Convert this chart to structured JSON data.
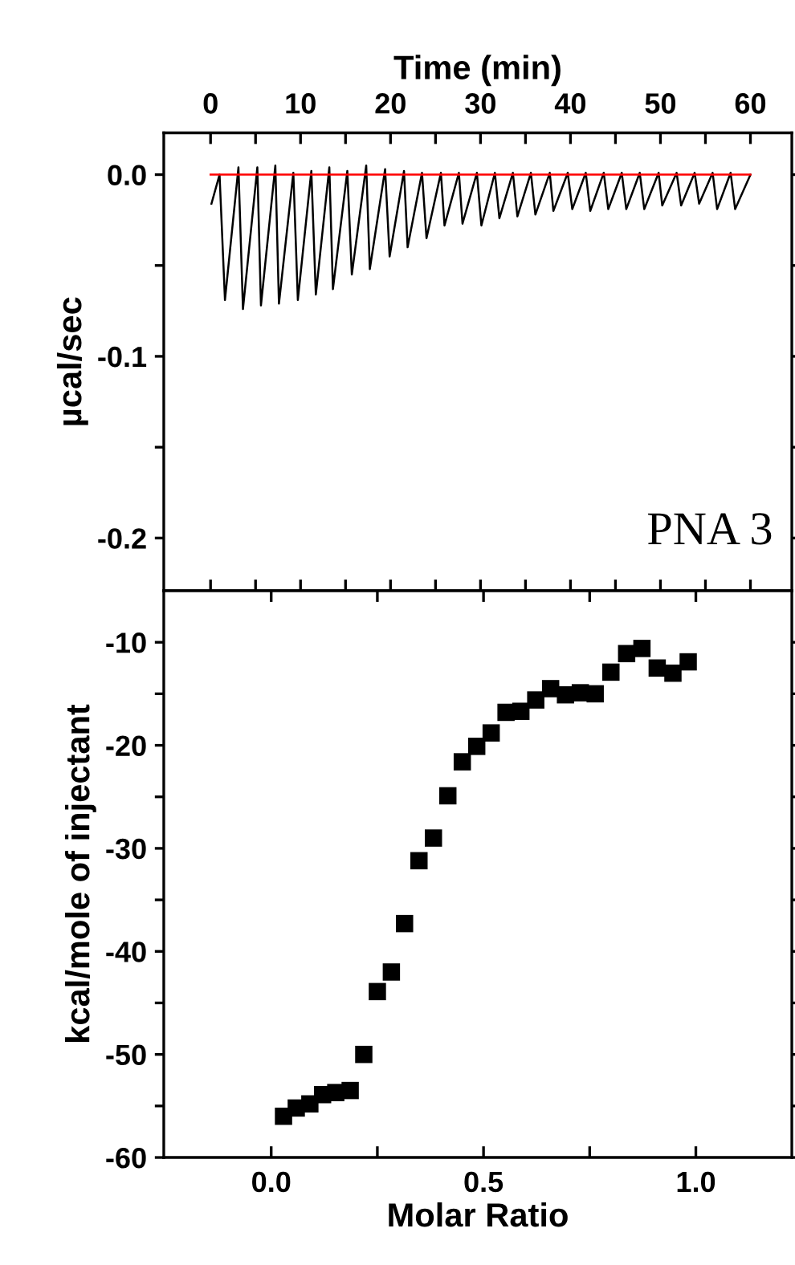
{
  "chart_data": [
    {
      "type": "line",
      "xlabel": "Time (min)",
      "ylabel": "µcal/sec",
      "xlim": [
        -5.2,
        64.6
      ],
      "xticks": [
        0,
        {
          "value": 5,
          "label": null
        },
        10,
        {
          "value": 15,
          "label": null
        },
        20,
        {
          "value": 25,
          "label": null
        },
        30,
        {
          "value": 35,
          "label": null
        },
        40,
        {
          "value": 45,
          "label": null
        },
        50,
        {
          "value": 55,
          "label": null
        },
        60
      ],
      "ylim": [
        -0.229,
        0.023
      ],
      "yticks": [
        {
          "value": 0,
          "label": "0.0"
        },
        {
          "value": -0.05,
          "label": null
        },
        {
          "value": -0.1,
          "label": "-0.1"
        },
        {
          "value": -0.15,
          "label": null
        },
        {
          "value": -0.2,
          "label": "-0.2"
        }
      ],
      "annotations": [
        "PNA 3"
      ],
      "series": [
        {
          "color": "#000000",
          "x": [
            0.1,
            1.0,
            1.6,
            3.1,
            3.6,
            5.2,
            5.6,
            7.2,
            7.6,
            9.2,
            9.7,
            11.2,
            11.7,
            13.2,
            13.6,
            15.2,
            15.7,
            17.3,
            17.7,
            19.4,
            19.9,
            21.5,
            21.9,
            23.5,
            24.0,
            25.6,
            26.0,
            27.6,
            28.0,
            29.6,
            30.1,
            31.6,
            32.1,
            33.6,
            34.1,
            35.6,
            36.1,
            37.7,
            38.1,
            39.7,
            40.2,
            41.7,
            42.2,
            43.7,
            44.2,
            45.7,
            46.2,
            47.7,
            48.2,
            49.8,
            50.2,
            51.8,
            52.3,
            53.8,
            54.3,
            55.8,
            56.3,
            57.8,
            58.3,
            60.0
          ],
          "values": [
            -0.016,
            0.0,
            -0.069,
            0.004,
            -0.074,
            0.004,
            -0.072,
            0.005,
            -0.071,
            0.001,
            -0.069,
            0.002,
            -0.066,
            0.004,
            -0.063,
            0.002,
            -0.055,
            0.005,
            -0.052,
            0.003,
            -0.045,
            0.002,
            -0.04,
            0.001,
            -0.035,
            0.001,
            -0.028,
            0.001,
            -0.027,
            0.001,
            -0.028,
            0.001,
            -0.024,
            0.001,
            -0.023,
            0.001,
            -0.022,
            0.001,
            -0.02,
            0.001,
            -0.019,
            0.001,
            -0.02,
            0.001,
            -0.019,
            0.001,
            -0.019,
            0.001,
            -0.019,
            0.001,
            -0.017,
            0.001,
            -0.017,
            0.001,
            -0.016,
            0.001,
            -0.019,
            0.001,
            -0.019,
            0.0
          ]
        },
        {
          "color": "#ff0000",
          "x": [
            0,
            60
          ],
          "values": [
            0,
            0
          ]
        }
      ]
    },
    {
      "type": "scatter",
      "xlabel": "Molar Ratio",
      "ylabel": "kcal/mole of injectant",
      "marker": "square",
      "xlim": [
        -0.253,
        1.226
      ],
      "xticks": [
        {
          "value": 0,
          "label": "0.0"
        },
        {
          "value": 0.25,
          "label": null
        },
        {
          "value": 0.5,
          "label": "0.5"
        },
        {
          "value": 0.75,
          "label": null
        },
        {
          "value": 1.0,
          "label": "1.0"
        }
      ],
      "ylim": [
        -60,
        -5
      ],
      "yticks": [
        {
          "value": -60,
          "label": "-60"
        },
        {
          "value": -55,
          "label": null
        },
        {
          "value": -50,
          "label": "-50"
        },
        {
          "value": -45,
          "label": null
        },
        {
          "value": -40,
          "label": "-40"
        },
        {
          "value": -35,
          "label": null
        },
        {
          "value": -30,
          "label": "-30"
        },
        {
          "value": -25,
          "label": null
        },
        {
          "value": -20,
          "label": "-20"
        },
        {
          "value": -15,
          "label": null
        },
        {
          "value": -10,
          "label": "-10"
        }
      ],
      "series": [
        {
          "color": "#000000",
          "x": [
            0.029,
            0.059,
            0.091,
            0.121,
            0.152,
            0.186,
            0.218,
            0.25,
            0.283,
            0.314,
            0.348,
            0.382,
            0.416,
            0.45,
            0.484,
            0.518,
            0.553,
            0.588,
            0.623,
            0.658,
            0.693,
            0.728,
            0.763,
            0.8,
            0.837,
            0.873,
            0.909,
            0.946,
            0.982
          ],
          "values": [
            -56.0,
            -55.2,
            -54.8,
            -53.9,
            -53.7,
            -53.5,
            -50.0,
            -43.9,
            -42.0,
            -37.3,
            -31.2,
            -29.0,
            -24.9,
            -21.6,
            -20.1,
            -18.8,
            -16.8,
            -16.7,
            -15.6,
            -14.5,
            -15.1,
            -14.9,
            -15.0,
            -12.9,
            -11.1,
            -10.6,
            -12.5,
            -13.0,
            -11.9
          ]
        }
      ]
    }
  ]
}
